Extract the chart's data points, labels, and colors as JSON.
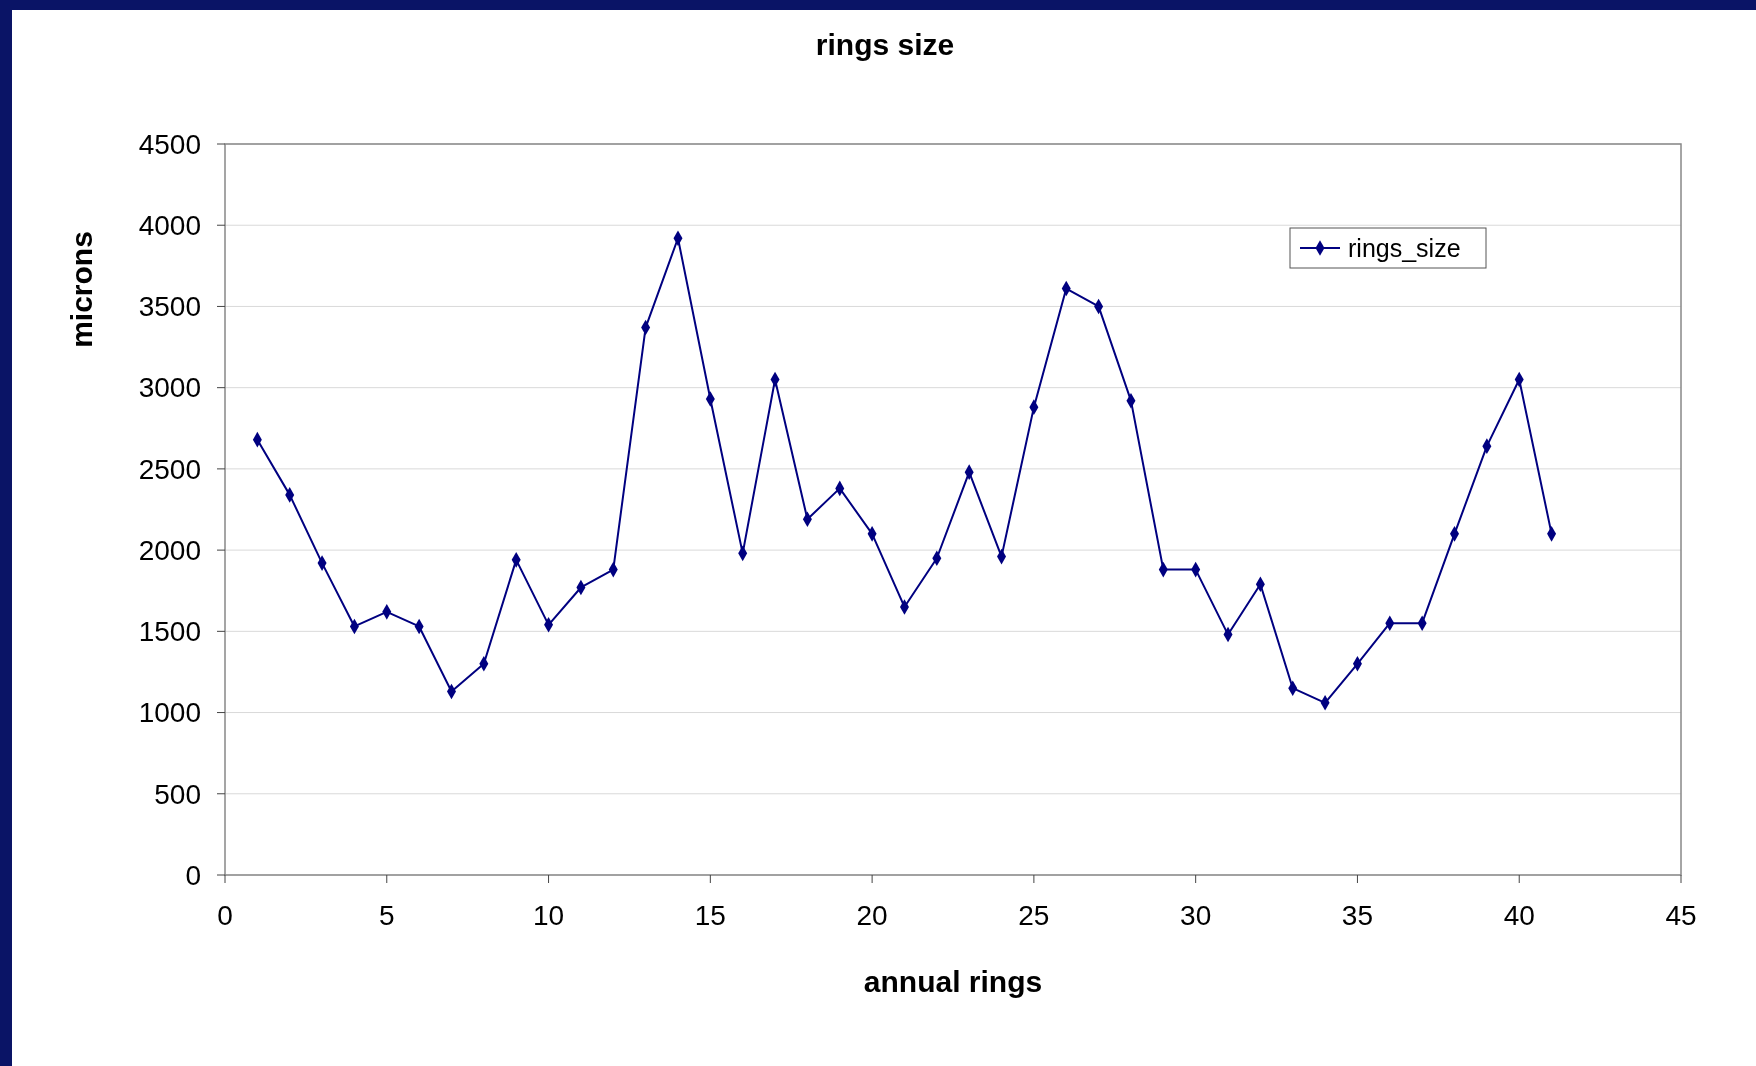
{
  "chart_data": {
    "type": "line",
    "title": "rings size",
    "xlabel": "annual rings",
    "ylabel": "microns",
    "x": [
      1,
      2,
      3,
      4,
      5,
      6,
      7,
      8,
      9,
      10,
      11,
      12,
      13,
      14,
      15,
      16,
      17,
      18,
      19,
      20,
      21,
      22,
      23,
      24,
      25,
      26,
      27,
      28,
      29,
      30,
      31,
      32,
      33,
      34,
      35,
      36,
      37,
      38,
      39,
      40,
      41
    ],
    "series": [
      {
        "name": "rings_size",
        "color": "#000080",
        "values": [
          2680,
          2340,
          1920,
          1530,
          1620,
          1530,
          1130,
          1300,
          1940,
          1540,
          1770,
          1880,
          3370,
          3920,
          2930,
          1980,
          3050,
          2190,
          2380,
          2100,
          1650,
          1950,
          2480,
          1960,
          2880,
          3610,
          3500,
          2920,
          1880,
          1880,
          1480,
          1790,
          1150,
          1060,
          1300,
          1550,
          1550,
          2100,
          2640,
          3050,
          2100
        ]
      }
    ],
    "xlim": [
      0,
      45
    ],
    "xticks": [
      0,
      5,
      10,
      15,
      20,
      25,
      30,
      35,
      40,
      45
    ],
    "ylim": [
      0,
      4500
    ],
    "yticks": [
      0,
      500,
      1000,
      1500,
      2000,
      2500,
      3000,
      3500,
      4000,
      4500
    ],
    "grid": "y",
    "legend": "top right",
    "marker": "diamond",
    "line_style": "solid"
  }
}
